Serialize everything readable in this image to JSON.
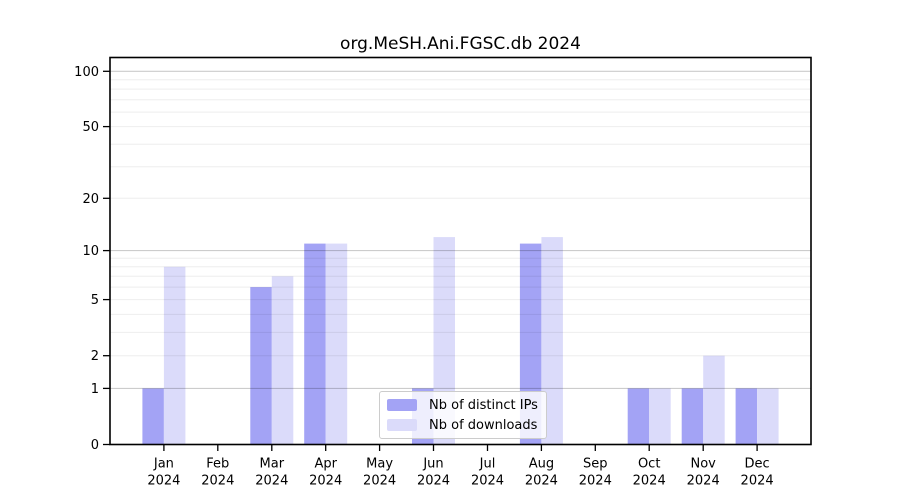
{
  "figure": {
    "background": "#ffffff"
  },
  "chart_data": {
    "type": "bar",
    "title": "org.MeSH.Ani.FGSC.db 2024",
    "year_label": "2024",
    "months": [
      "Jan",
      "Feb",
      "Mar",
      "Apr",
      "May",
      "Jun",
      "Jul",
      "Aug",
      "Sep",
      "Oct",
      "Nov",
      "Dec"
    ],
    "series": [
      {
        "name": "Nb of distinct IPs",
        "color": "#a3a3f5",
        "values": [
          1,
          0,
          6,
          11,
          0,
          1,
          0,
          11,
          0,
          1,
          1,
          1
        ]
      },
      {
        "name": "Nb of downloads",
        "color": "#dbdbfa",
        "values": [
          8,
          0,
          7,
          11,
          0,
          12,
          0,
          12,
          0,
          1,
          2,
          1
        ]
      }
    ],
    "xlabel": "",
    "ylabel": "",
    "yscale": "log1p",
    "ylim": [
      0,
      119
    ],
    "yticks": [
      0,
      1,
      2,
      5,
      10,
      20,
      50,
      100
    ],
    "grid": {
      "on": true,
      "minor": [
        2,
        3,
        4,
        5,
        6,
        7,
        8,
        9,
        20,
        30,
        40,
        50,
        60,
        70,
        80,
        90
      ],
      "major": [
        1,
        10,
        100
      ]
    },
    "legend_position": "inside-bottom-center"
  }
}
